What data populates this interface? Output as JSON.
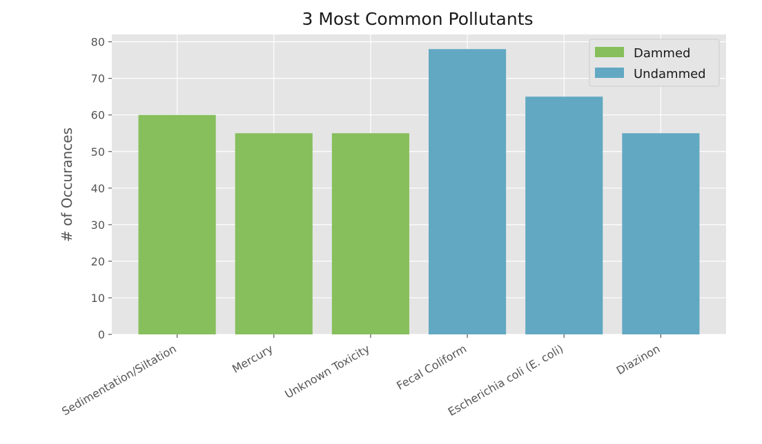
{
  "chart_data": {
    "type": "bar",
    "title": "3 Most Common Pollutants",
    "xlabel": "",
    "ylabel": "# of Occurances",
    "ylim": [
      0,
      82
    ],
    "yticks": [
      0,
      10,
      20,
      30,
      40,
      50,
      60,
      70,
      80
    ],
    "categories": [
      "Sedimentation/Siltation",
      "Mercury",
      "Unknown Toxicity",
      "Fecal Coliform",
      "Escherichia coli (E. coli)",
      "Diazinon"
    ],
    "series": [
      {
        "name": "Dammed",
        "color": "#86bf5c",
        "values": [
          60,
          55,
          55,
          null,
          null,
          null
        ]
      },
      {
        "name": "Undammed",
        "color": "#62a8c2",
        "values": [
          null,
          null,
          null,
          78,
          65,
          55
        ]
      }
    ],
    "grid": true,
    "legend_position": "top-right",
    "background": "#e5e5e5"
  }
}
